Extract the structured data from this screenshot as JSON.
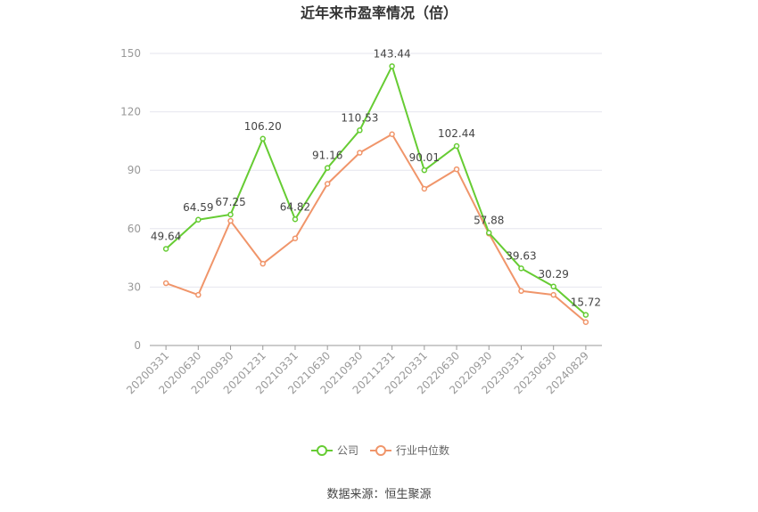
{
  "chart_data": {
    "type": "line",
    "title": "近年来市盈率情况（倍）",
    "categories": [
      "20200331",
      "20200630",
      "20200930",
      "20201231",
      "20210331",
      "20210630",
      "20210930",
      "20211231",
      "20220331",
      "20220630",
      "20220930",
      "20230331",
      "20230630",
      "20240829"
    ],
    "series": [
      {
        "name": "公司",
        "color": "#66cc33",
        "values": [
          49.64,
          64.59,
          67.25,
          106.2,
          64.82,
          91.16,
          110.53,
          143.44,
          90.01,
          102.44,
          57.88,
          39.63,
          30.29,
          15.72
        ],
        "labels": [
          "49.64",
          "64.59",
          "67.25",
          "106.20",
          "64.82",
          "91.16",
          "110.53",
          "143.44",
          "90.01",
          "102.44",
          "57.88",
          "39.63",
          "30.29",
          "15.72"
        ]
      },
      {
        "name": "行业中位数",
        "color": "#f0956a",
        "values": [
          32,
          26,
          64,
          42,
          55,
          83,
          99,
          108.5,
          80.5,
          90.5,
          57.5,
          28,
          26,
          12
        ]
      }
    ],
    "ylim": [
      0,
      150
    ],
    "yticks": [
      "0",
      "30",
      "60",
      "90",
      "120",
      "150"
    ],
    "grid": true,
    "legend_position": "bottom"
  },
  "source": "数据来源：恒生聚源"
}
